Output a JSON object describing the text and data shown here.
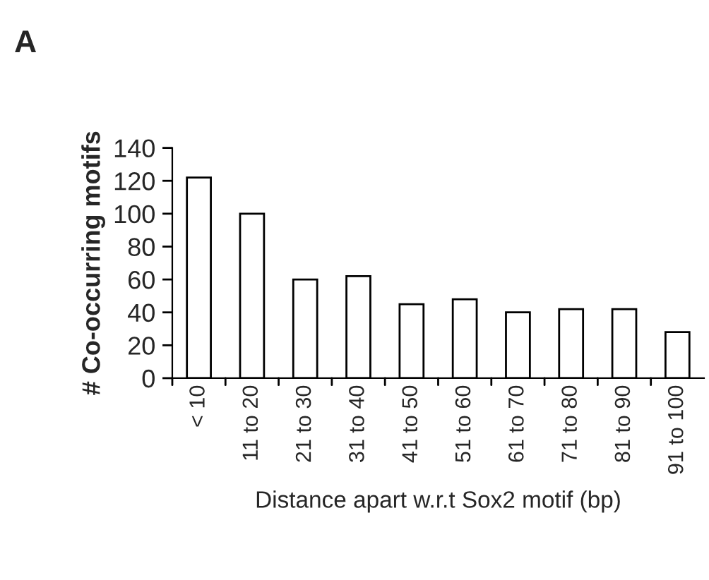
{
  "chart_data": {
    "type": "bar",
    "xlabel": "Distance apart w.r.t Sox2 motif (bp)",
    "ylabel": "# Co-occurring motifs",
    "annotations": [
      "A"
    ],
    "categories": [
      "< 10",
      "11 to 20",
      "21 to 30",
      "31 to 40",
      "41 to 50",
      "51 to 60",
      "61 to 70",
      "71 to 80",
      "81 to 90",
      "91 to 100"
    ],
    "values": [
      122,
      100,
      60,
      62,
      45,
      48,
      40,
      42,
      42,
      28
    ],
    "color": "#ffffff",
    "ylim": [
      0,
      140
    ],
    "yticks": [
      0,
      20,
      40,
      60,
      80,
      100,
      120,
      140
    ],
    "grid": false
  }
}
